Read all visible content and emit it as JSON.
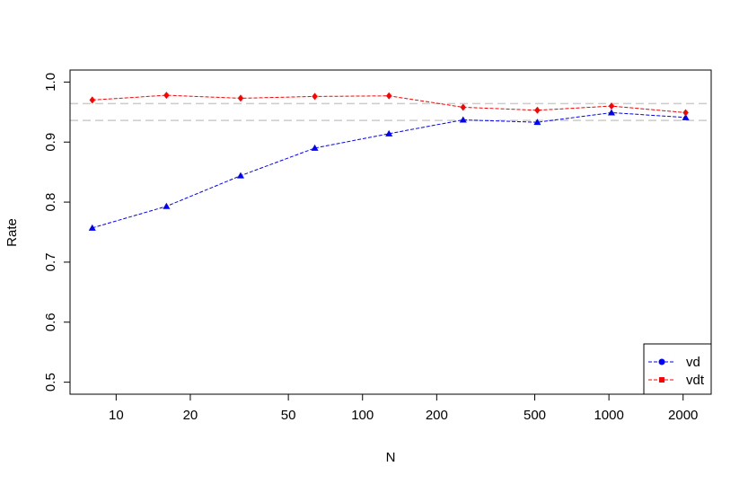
{
  "chart_data": {
    "type": "line",
    "title": "",
    "xlabel": "N",
    "ylabel": "Rate",
    "x_scale": "log",
    "x_ticks": [
      "10",
      "20",
      "50",
      "100",
      "200",
      "500",
      "1000",
      "2000"
    ],
    "y_ticks": [
      "0.5",
      "0.6",
      "0.7",
      "0.8",
      "0.9",
      "1.0"
    ],
    "xlim": [
      6.5,
      2600
    ],
    "ylim": [
      0.48,
      1.02
    ],
    "grid": false,
    "legend_position": "bottom-right",
    "x": [
      8,
      16,
      32,
      64,
      128,
      256,
      512,
      1024,
      2048
    ],
    "series": [
      {
        "name": "vd",
        "color": "#0000ff",
        "marker": "triangle",
        "line_style": "dashed",
        "values": [
          0.757,
          0.793,
          0.844,
          0.89,
          0.914,
          0.937,
          0.933,
          0.949,
          0.941
        ]
      },
      {
        "name": "vdt",
        "color": "#ff0000",
        "marker": "diamond",
        "line_style": "dashed",
        "values": [
          0.97,
          0.978,
          0.973,
          0.976,
          0.977,
          0.958,
          0.953,
          0.96,
          0.949
        ]
      }
    ],
    "reference_lines": {
      "color": "#cccccc",
      "values": [
        0.964,
        0.936
      ]
    },
    "legend_symbols": {
      "vd": "circle",
      "vdt": "square"
    }
  }
}
